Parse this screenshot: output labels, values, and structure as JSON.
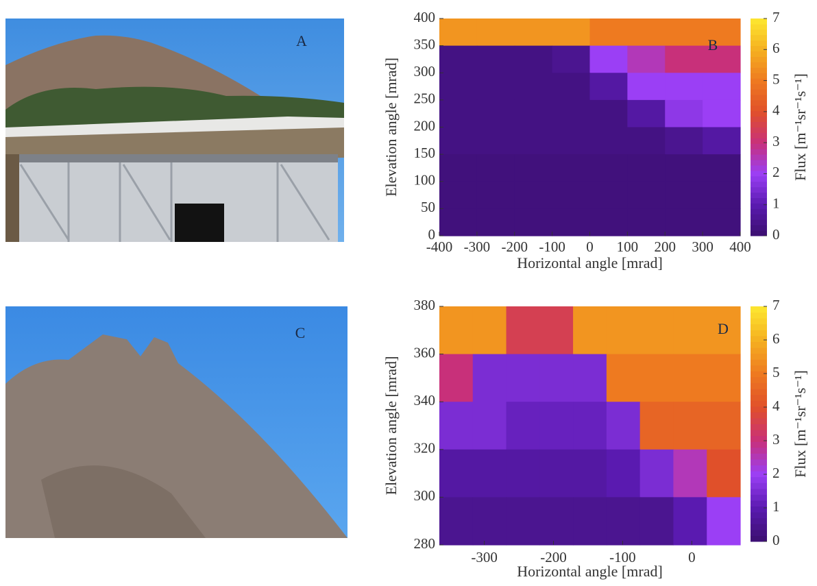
{
  "photos": [
    {
      "label": "A"
    },
    {
      "label": "C"
    }
  ],
  "chart_data": [
    {
      "type": "heatmap",
      "panel_label": "B",
      "xlabel": "Horizontal angle [mrad]",
      "ylabel": "Elevation angle [mrad]",
      "xlim": [
        -400,
        400
      ],
      "ylim": [
        0,
        400
      ],
      "xticks": [
        -400,
        -300,
        -200,
        -100,
        0,
        100,
        200,
        300,
        400
      ],
      "yticks": [
        0,
        50,
        100,
        150,
        200,
        250,
        300,
        350,
        400
      ],
      "z": [
        [
          5.5,
          5.5,
          5.5,
          5.5,
          5,
          5,
          5,
          5
        ],
        [
          0.3,
          0.3,
          0.3,
          0.5,
          2,
          2.5,
          3,
          3
        ],
        [
          0.3,
          0.3,
          0.3,
          0.3,
          0.8,
          2,
          2,
          2
        ],
        [
          0.3,
          0.3,
          0.3,
          0.3,
          0.3,
          0.8,
          1.8,
          2
        ],
        [
          0.3,
          0.3,
          0.3,
          0.3,
          0.3,
          0.3,
          0.5,
          0.8
        ],
        [
          0.2,
          0.2,
          0.2,
          0.2,
          0.2,
          0.2,
          0.2,
          0.2
        ],
        [
          0.2,
          0.2,
          0.2,
          0.2,
          0.2,
          0.2,
          0.2,
          0.2
        ],
        [
          0.2,
          0.2,
          0.2,
          0.2,
          0.2,
          0.2,
          0.2,
          0.2
        ]
      ],
      "clim": [
        0,
        7
      ],
      "cticks": [
        0,
        1,
        2,
        3,
        4,
        5,
        6,
        7
      ],
      "colorbar_label": "Flux [m⁻¹sr⁻¹s⁻¹]",
      "colormap": [
        "#3b0f6f",
        "#5a1ab0",
        "#9b3ff5",
        "#c8307a",
        "#e0502a",
        "#ee7a20",
        "#f5b020",
        "#fde830"
      ]
    },
    {
      "type": "heatmap",
      "panel_label": "D",
      "xlabel": "Horizontal angle [mrad]",
      "ylabel": "Elevation angle [mrad]",
      "xlim": [
        -365,
        70
      ],
      "ylim": [
        280,
        380
      ],
      "xticks": [
        -300,
        -200,
        -100,
        0
      ],
      "yticks": [
        280,
        300,
        320,
        340,
        360,
        380
      ],
      "z": [
        [
          5.5,
          5.5,
          3.5,
          3.5,
          5.5,
          5.5,
          5.5,
          5.5,
          5.5
        ],
        [
          3,
          1.5,
          1.5,
          1.5,
          1.5,
          5,
          5,
          5,
          5
        ],
        [
          1.5,
          1.5,
          1.2,
          1.2,
          1.2,
          1.5,
          4.5,
          4.5,
          4.5
        ],
        [
          0.8,
          0.8,
          0.8,
          0.8,
          0.8,
          1,
          1.5,
          2.5,
          4
        ],
        [
          0.5,
          0.5,
          0.5,
          0.5,
          0.5,
          0.5,
          0.5,
          1,
          2
        ]
      ],
      "clim": [
        0,
        7
      ],
      "cticks": [
        0,
        1,
        2,
        3,
        4,
        5,
        6,
        7
      ],
      "colorbar_label": "Flux [m⁻¹sr⁻¹s⁻¹]",
      "colormap": [
        "#3b0f6f",
        "#5a1ab0",
        "#9b3ff5",
        "#c8307a",
        "#e0502a",
        "#ee7a20",
        "#f5b020",
        "#fde830"
      ]
    }
  ]
}
